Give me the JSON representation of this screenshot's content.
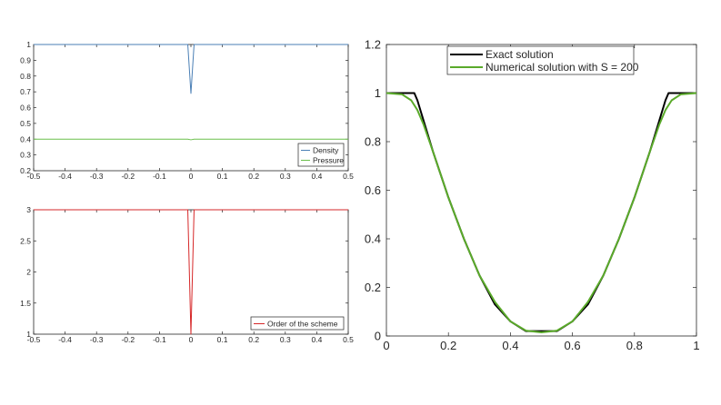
{
  "colors": {
    "density": "#4a7fb5",
    "pressure": "#6abf4b",
    "order": "#d62728",
    "exact": "#000000",
    "numerical": "#5aaa2a",
    "axis": "#262626"
  },
  "chart_data": [
    {
      "id": "top-left",
      "type": "line",
      "title": "",
      "xlabel": "",
      "ylabel": "",
      "xlim": [
        -0.5,
        0.5
      ],
      "ylim": [
        0.2,
        1.0
      ],
      "grid": false,
      "legend_position": "bottom-right",
      "xticks": [
        {
          "v": -0.5,
          "label": "-0.5"
        },
        {
          "v": -0.4,
          "label": "-0.4"
        },
        {
          "v": -0.3,
          "label": "-0.3"
        },
        {
          "v": -0.2,
          "label": "-0.2"
        },
        {
          "v": -0.1,
          "label": "-0.1"
        },
        {
          "v": 0,
          "label": "0"
        },
        {
          "v": 0.1,
          "label": "0.1"
        },
        {
          "v": 0.2,
          "label": "0.2"
        },
        {
          "v": 0.3,
          "label": "0.3"
        },
        {
          "v": 0.4,
          "label": "0.4"
        },
        {
          "v": 0.5,
          "label": "0.5"
        }
      ],
      "yticks": [
        {
          "v": 0.2,
          "label": "0.2"
        },
        {
          "v": 0.3,
          "label": "0.3"
        },
        {
          "v": 0.4,
          "label": "0.4"
        },
        {
          "v": 0.5,
          "label": "0.5"
        },
        {
          "v": 0.6,
          "label": "0.6"
        },
        {
          "v": 0.7,
          "label": "0.7"
        },
        {
          "v": 0.8,
          "label": "0.8"
        },
        {
          "v": 0.9,
          "label": "0.9"
        },
        {
          "v": 1.0,
          "label": "1"
        }
      ],
      "series": [
        {
          "name": "Density",
          "color_key": "density",
          "x": [
            -0.5,
            -0.01,
            0.0,
            0.01,
            0.5
          ],
          "y": [
            1.0,
            1.0,
            0.69,
            1.0,
            1.0
          ]
        },
        {
          "name": "Pressure",
          "color_key": "pressure",
          "x": [
            -0.5,
            -0.01,
            0.0,
            0.01,
            0.5
          ],
          "y": [
            0.4,
            0.4,
            0.396,
            0.4,
            0.4
          ]
        }
      ]
    },
    {
      "id": "bottom-left",
      "type": "line",
      "title": "",
      "xlabel": "",
      "ylabel": "",
      "xlim": [
        -0.5,
        0.5
      ],
      "ylim": [
        1,
        3
      ],
      "grid": false,
      "legend_position": "bottom-right",
      "xticks": [
        {
          "v": -0.5,
          "label": "-0.5"
        },
        {
          "v": -0.4,
          "label": "-0.4"
        },
        {
          "v": -0.3,
          "label": "-0.3"
        },
        {
          "v": -0.2,
          "label": "-0.2"
        },
        {
          "v": -0.1,
          "label": "-0.1"
        },
        {
          "v": 0,
          "label": "0"
        },
        {
          "v": 0.1,
          "label": "0.1"
        },
        {
          "v": 0.2,
          "label": "0.2"
        },
        {
          "v": 0.3,
          "label": "0.3"
        },
        {
          "v": 0.4,
          "label": "0.4"
        },
        {
          "v": 0.5,
          "label": "0.5"
        }
      ],
      "yticks": [
        {
          "v": 1,
          "label": "1"
        },
        {
          "v": 1.5,
          "label": "1.5"
        },
        {
          "v": 2,
          "label": "2"
        },
        {
          "v": 2.5,
          "label": "2.5"
        },
        {
          "v": 3,
          "label": "3"
        }
      ],
      "series": [
        {
          "name": "Order of the scheme",
          "color_key": "order",
          "x": [
            -0.5,
            -0.01,
            0.0,
            0.01,
            0.5
          ],
          "y": [
            3,
            3,
            1,
            3,
            3
          ]
        }
      ]
    },
    {
      "id": "right",
      "type": "line",
      "title": "",
      "xlabel": "",
      "ylabel": "",
      "xlim": [
        0,
        1
      ],
      "ylim": [
        0,
        1.2
      ],
      "grid": false,
      "legend_position": "top-center",
      "xticks": [
        {
          "v": 0,
          "label": "0"
        },
        {
          "v": 0.2,
          "label": "0.2"
        },
        {
          "v": 0.4,
          "label": "0.4"
        },
        {
          "v": 0.6,
          "label": "0.6"
        },
        {
          "v": 0.8,
          "label": "0.8"
        },
        {
          "v": 1,
          "label": "1"
        }
      ],
      "yticks": [
        {
          "v": 0,
          "label": "0"
        },
        {
          "v": 0.2,
          "label": "0.2"
        },
        {
          "v": 0.4,
          "label": "0.4"
        },
        {
          "v": 0.6,
          "label": "0.6"
        },
        {
          "v": 0.8,
          "label": "0.8"
        },
        {
          "v": 1,
          "label": "1"
        },
        {
          "v": 1.2,
          "label": "1.2"
        }
      ],
      "series": [
        {
          "name": "Exact solution",
          "color_key": "exact",
          "x": [
            0,
            0.09,
            0.1,
            0.15,
            0.2,
            0.25,
            0.3,
            0.35,
            0.4,
            0.45,
            0.5,
            0.55,
            0.6,
            0.65,
            0.7,
            0.75,
            0.8,
            0.85,
            0.9,
            0.91,
            1
          ],
          "y": [
            1.0,
            1.0,
            0.97,
            0.76,
            0.57,
            0.4,
            0.25,
            0.13,
            0.06,
            0.02,
            0.02,
            0.02,
            0.06,
            0.13,
            0.25,
            0.4,
            0.57,
            0.76,
            0.97,
            1.0,
            1.0
          ]
        },
        {
          "name": "Numerical solution with S = 200",
          "color_key": "numerical",
          "x": [
            0,
            0.05,
            0.08,
            0.1,
            0.12,
            0.15,
            0.2,
            0.25,
            0.3,
            0.35,
            0.4,
            0.45,
            0.5,
            0.55,
            0.6,
            0.65,
            0.7,
            0.75,
            0.8,
            0.85,
            0.88,
            0.9,
            0.92,
            0.95,
            1
          ],
          "y": [
            1.0,
            0.995,
            0.97,
            0.93,
            0.87,
            0.76,
            0.57,
            0.4,
            0.25,
            0.14,
            0.06,
            0.022,
            0.015,
            0.022,
            0.06,
            0.14,
            0.25,
            0.4,
            0.57,
            0.76,
            0.87,
            0.93,
            0.97,
            0.995,
            1.0
          ]
        }
      ]
    }
  ]
}
